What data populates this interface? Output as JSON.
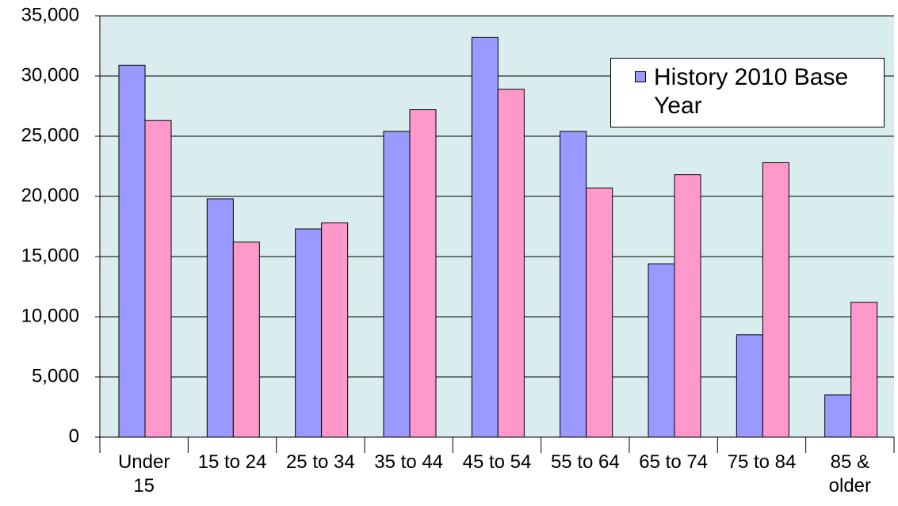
{
  "chart_data": {
    "type": "bar",
    "categories": [
      "Under 15",
      "15 to 24",
      "25 to 34",
      "35 to 44",
      "45 to 54",
      "55 to 64",
      "65 to 74",
      "75 to 84",
      "85 & older"
    ],
    "series": [
      {
        "name": "History 2010 Base Year",
        "color": "#9999ff",
        "values": [
          30900,
          19800,
          17300,
          25400,
          33200,
          25400,
          14400,
          8500,
          3500
        ]
      },
      {
        "color": "#ff99cc",
        "values": [
          26300,
          16200,
          17800,
          27200,
          28900,
          20700,
          21800,
          22800,
          11200
        ]
      }
    ],
    "ylim": [
      0,
      35000
    ],
    "yticks": [
      0,
      {
        "value": 5000,
        "label": "5,000"
      },
      {
        "value": 10000,
        "label": "10,000"
      },
      {
        "value": 15000,
        "label": "15,000"
      },
      {
        "value": 20000,
        "label": "20,000"
      },
      {
        "value": 25000,
        "label": "25,000"
      },
      {
        "value": 30000,
        "label": "30,000"
      },
      {
        "value": 35000,
        "label": "35,000"
      }
    ],
    "grid": true,
    "legend": "top-right",
    "background": "#d9edee"
  }
}
